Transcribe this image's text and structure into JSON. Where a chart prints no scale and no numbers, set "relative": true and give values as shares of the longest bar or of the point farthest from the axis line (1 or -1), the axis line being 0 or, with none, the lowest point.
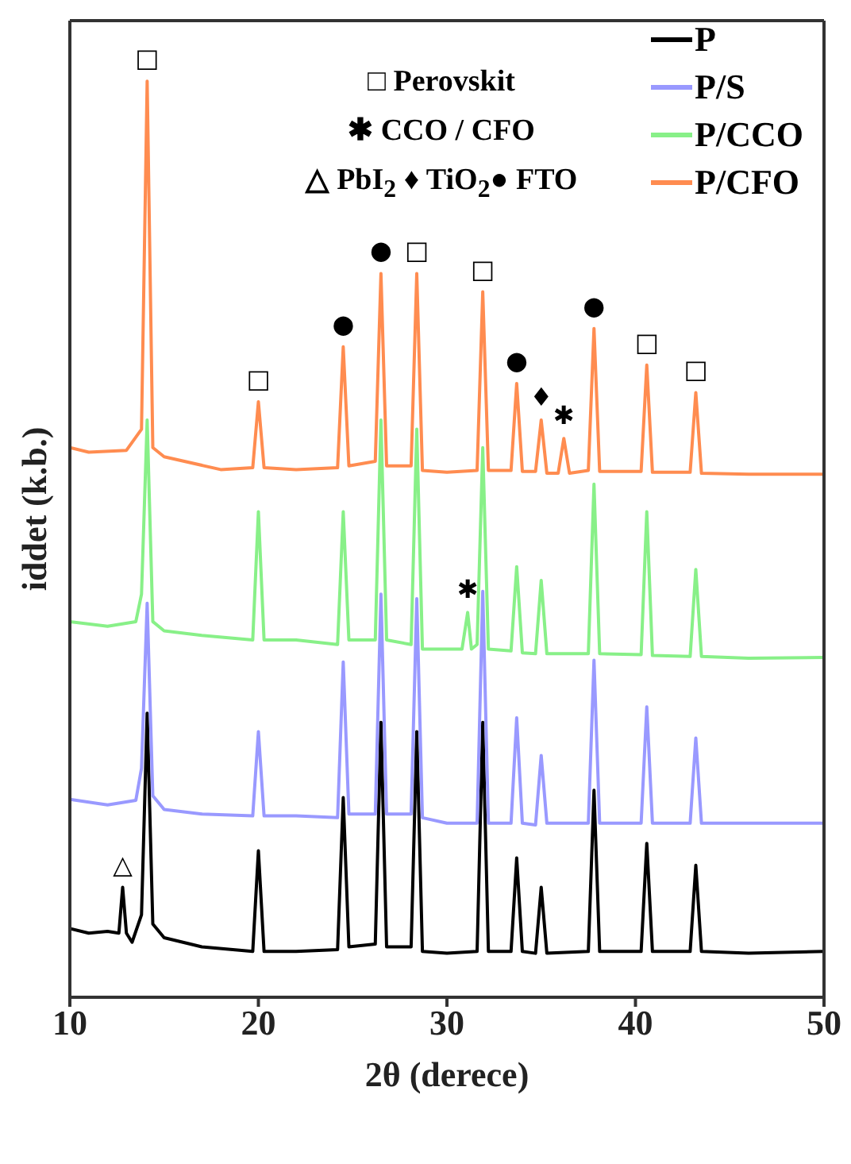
{
  "chart_data": {
    "type": "line",
    "relative": true,
    "xlabel": "2θ (derece)",
    "ylabel": "iddet (k.b.)",
    "xlim": [
      10,
      50
    ],
    "xticks": [
      10,
      20,
      30,
      40,
      50
    ],
    "legend": "top right",
    "marker": "none",
    "annotations": [
      "□ Perovskit",
      "✱ CCO / CFO",
      "△ PbI$_{2}$ ♦ TiO$_{2}$● FTO",
      {
        "text": "□",
        "x": 14.1,
        "y": 1
      },
      {
        "text": "□",
        "x": 20,
        "y": 0.65
      },
      {
        "text": "●",
        "x": 24.5,
        "y": 0.71
      },
      {
        "text": "●",
        "x": 26.5,
        "y": 0.79
      },
      {
        "text": "□",
        "x": 28.4,
        "y": 0.79
      },
      {
        "text": "□",
        "x": 31.9,
        "y": 0.77
      },
      {
        "text": "●",
        "x": 33.7,
        "y": 0.67
      },
      {
        "text": "♦",
        "x": 35,
        "y": 0.63
      },
      {
        "text": "✱",
        "x": 36.2,
        "y": 0.61
      },
      {
        "text": "●",
        "x": 37.8,
        "y": 0.73
      },
      {
        "text": "□",
        "x": 40.6,
        "y": 0.69
      },
      {
        "text": "□",
        "x": 43.2,
        "y": 0.66
      },
      {
        "text": "✱",
        "x": 31.1,
        "y": 0.42
      },
      {
        "text": "△",
        "x": 12.8,
        "y": 0.12
      }
    ],
    "series": [
      {
        "name": "P",
        "color": "#000000",
        "x": [
          10,
          11,
          12,
          12.6,
          12.8,
          13,
          13.3,
          13.8,
          14.1,
          14.4,
          15,
          17,
          19.7,
          20,
          20.3,
          22,
          24.2,
          24.5,
          24.8,
          26.2,
          26.5,
          26.8,
          28.1,
          28.4,
          28.7,
          30,
          31.6,
          31.9,
          32.2,
          33.4,
          33.7,
          34,
          34.7,
          35,
          35.3,
          37.5,
          37.8,
          38.1,
          40.3,
          40.6,
          40.9,
          42.9,
          43.2,
          43.5,
          46,
          50
        ],
        "values": [
          0.075,
          0.07,
          0.072,
          0.07,
          0.12,
          0.07,
          0.06,
          0.09,
          0.31,
          0.08,
          0.065,
          0.055,
          0.05,
          0.16,
          0.05,
          0.05,
          0.052,
          0.218,
          0.055,
          0.058,
          0.3,
          0.055,
          0.055,
          0.29,
          0.05,
          0.048,
          0.05,
          0.3,
          0.05,
          0.05,
          0.152,
          0.05,
          0.048,
          0.12,
          0.048,
          0.05,
          0.226,
          0.05,
          0.05,
          0.168,
          0.05,
          0.05,
          0.144,
          0.05,
          0.048,
          0.05
        ]
      },
      {
        "name": "P/S",
        "color": "#9999ff",
        "x": [
          10,
          12,
          13.5,
          13.8,
          14.1,
          14.4,
          15,
          17,
          19.7,
          20,
          20.3,
          22,
          24.2,
          24.5,
          24.8,
          26.2,
          26.5,
          26.8,
          28.1,
          28.4,
          28.7,
          30,
          31.6,
          31.9,
          32.2,
          33.4,
          33.7,
          34,
          34.7,
          35,
          35.3,
          37.5,
          37.8,
          38.1,
          40.3,
          40.6,
          40.9,
          42.9,
          43.2,
          43.5,
          46,
          50
        ],
        "values": [
          0.216,
          0.21,
          0.215,
          0.25,
          0.43,
          0.22,
          0.205,
          0.2,
          0.198,
          0.29,
          0.198,
          0.198,
          0.196,
          0.366,
          0.2,
          0.2,
          0.44,
          0.2,
          0.2,
          0.435,
          0.196,
          0.19,
          0.19,
          0.443,
          0.19,
          0.19,
          0.305,
          0.19,
          0.188,
          0.264,
          0.19,
          0.19,
          0.368,
          0.19,
          0.19,
          0.317,
          0.19,
          0.19,
          0.283,
          0.19,
          0.19,
          0.19
        ]
      },
      {
        "name": "P/CCO",
        "color": "#88f088",
        "x": [
          10,
          12,
          13.5,
          13.8,
          14.1,
          14.4,
          15,
          17,
          19.7,
          20,
          20.3,
          22,
          24.2,
          24.5,
          24.8,
          26.2,
          26.5,
          26.8,
          28.1,
          28.4,
          28.7,
          30,
          30.8,
          31.1,
          31.3,
          31.6,
          31.9,
          32.2,
          33.4,
          33.7,
          34,
          34.7,
          35,
          35.3,
          37.5,
          37.8,
          38.1,
          40.3,
          40.6,
          40.9,
          42.9,
          43.2,
          43.5,
          46,
          50
        ],
        "values": [
          0.41,
          0.405,
          0.41,
          0.44,
          0.63,
          0.41,
          0.4,
          0.395,
          0.39,
          0.53,
          0.39,
          0.39,
          0.385,
          0.53,
          0.39,
          0.39,
          0.63,
          0.39,
          0.385,
          0.62,
          0.38,
          0.38,
          0.38,
          0.42,
          0.38,
          0.385,
          0.6,
          0.38,
          0.378,
          0.47,
          0.376,
          0.375,
          0.455,
          0.375,
          0.375,
          0.56,
          0.375,
          0.374,
          0.53,
          0.373,
          0.372,
          0.467,
          0.372,
          0.37,
          0.371
        ]
      },
      {
        "name": "P/CFO",
        "color": "#ff8c50",
        "x": [
          10,
          11,
          13,
          13.8,
          14.1,
          14.4,
          15,
          18,
          19.7,
          20,
          20.3,
          22,
          24.2,
          24.5,
          24.8,
          26.2,
          26.5,
          26.8,
          28.1,
          28.4,
          28.7,
          30,
          31.6,
          31.9,
          32.2,
          33.4,
          33.7,
          34,
          34.7,
          35,
          35.3,
          35.9,
          36.2,
          36.5,
          37.5,
          37.8,
          38.1,
          40.3,
          40.6,
          40.9,
          42.9,
          43.2,
          43.5,
          46,
          50
        ],
        "values": [
          0.6,
          0.595,
          0.597,
          0.62,
          1,
          0.6,
          0.59,
          0.576,
          0.578,
          0.65,
          0.578,
          0.576,
          0.578,
          0.71,
          0.58,
          0.585,
          0.79,
          0.58,
          0.58,
          0.79,
          0.575,
          0.573,
          0.575,
          0.77,
          0.575,
          0.575,
          0.67,
          0.574,
          0.574,
          0.63,
          0.572,
          0.572,
          0.61,
          0.572,
          0.575,
          0.73,
          0.574,
          0.574,
          0.69,
          0.573,
          0.573,
          0.66,
          0.572,
          0.571,
          0.571
        ]
      }
    ]
  }
}
